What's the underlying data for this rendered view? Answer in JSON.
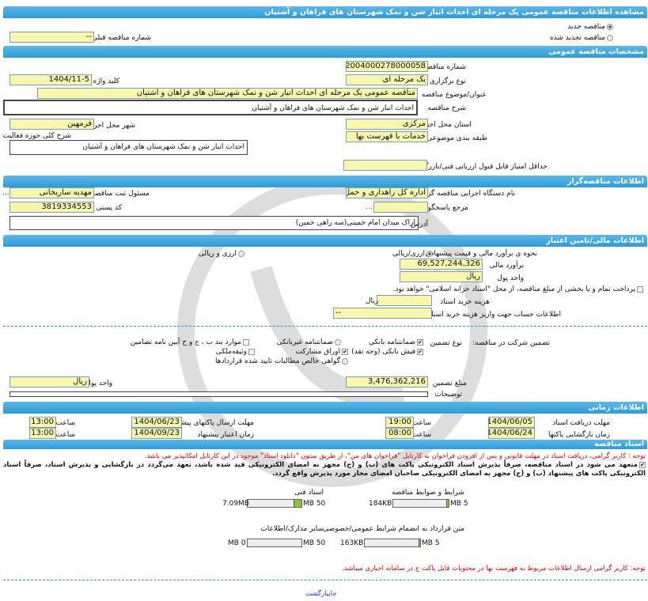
{
  "title": "مشاهده اطلاعات مناقصه عمومی یک مرحله ای احداث انبار شن و نمک شهرستان های فراهان و آشتیان",
  "tender_type": {
    "new": "مناقصه جدید",
    "renewed": "مناقصه تجدید شده",
    "selected": "new"
  },
  "previous_number": {
    "label": "شماره مناقصه قبلی",
    "value": "--"
  },
  "general": {
    "header": "مشخصات مناقصه عمومی",
    "number_label": "شماره مناقصه",
    "number": "2004000278000058",
    "holding_label": "نوع برگزاری",
    "holding": "یک مرحله ای",
    "keyword_label": "کلید واژه",
    "keyword": "1404/11-5",
    "subject_label": "عنوان/موضوع مناقصه",
    "subject": "مناقصه عمومی یک مرحله ای احداث انبار شن و نمک شهرستان های فراهان و آشتیان",
    "desc_label": "شرح مناقصه",
    "desc": "احداث انبار شن و نمک شهرستان های فراهان و آشتیان",
    "province_label": "استان محل اجرا",
    "province": "مرکزی",
    "city_label": "شهر محل اجرا",
    "city": "فرمهین",
    "activity_label": "شرح کلی حوزه فعالیت",
    "activity": "احداث انبار شن و نمک شهرستان های فراهان و آشتیان",
    "category_label": "طبقه بندی موضوعی",
    "category": "خدمات با فهرست بها",
    "min_score_label": "حداقل امتیاز قابل قبول ارزیابی فنی/بازرگانی",
    "min_score": ""
  },
  "organizer": {
    "header": "اطلاعات مناقصه‌گزار",
    "org_label": "نام دستگاه اجرایی مناقصه گزار",
    "org": "اداره کل راهداری و حمل و نقل",
    "responsible_label": "مسئول ثبت مناقصه",
    "responsible": "مهدیه ساریخانی",
    "more": "...",
    "reference_label": "مرجع پاسخگویی",
    "reference": "",
    "postal_label": "کد پستی",
    "postal": "3819334553",
    "address_label": "آدرس",
    "address": "اراک میدان امام خمینی(سه راهی خمین)"
  },
  "finance": {
    "header": "اطلاعات مالی/تامین اعتبار",
    "estimate_method_label": "نحوه ی برآورد مالی و قیمت پیشنهادی",
    "opt_rial": "ارزی/ریالی",
    "opt_both": "ارزی و ریالی",
    "estimate_label": "برآورد مالی",
    "estimate": "69,527,244,326",
    "currency_label": "واحد پول",
    "currency": "ریال",
    "treasury_text": "پرداخت تمام و یا بخشی از مبلغ مناقصه، از محل \"اسناد خزانه اسلامی\" خواهد بود.",
    "doc_cost_label": "هزینه خرید اسناد",
    "doc_cost": "",
    "doc_cost_unit": "ریال",
    "account_label": "اطلاعات حساب جهت واریز هزینه خرید اسناد",
    "account": "--"
  },
  "guarantee": {
    "label": "تضمین شرکت در مناقصه:",
    "type_label": "نوع تضمین",
    "items": [
      {
        "label": "ضمانتنامه بانکی",
        "checked": true
      },
      {
        "label": "ضمانتنامه غیربانکی",
        "checked": false
      },
      {
        "label": "موارد بند ب ، ج و ح آیین نامه تضامین",
        "checked": false
      },
      {
        "label": "فیش بانکی (وجه نقد)",
        "checked": true
      },
      {
        "label": "اوراق مشارکت",
        "checked": true
      },
      {
        "label": "وثیقه‌ملکی",
        "checked": false
      },
      {
        "label": "گواهی خالص مطالبات تایید شده قراردادها",
        "checked": false
      }
    ],
    "amount_label": "مبلغ تضمین",
    "amount": "3,476,362,216",
    "currency_label": "واحد پول",
    "currency": "ریال",
    "notes_label": "توضیحات",
    "notes": ""
  },
  "timing": {
    "header": "اطلاعات زمانی",
    "time_label": "ساعت",
    "doc_deadline_label": "مهلت دریافت اسناد",
    "doc_deadline": "1404/06/05",
    "doc_deadline_time": "19:00",
    "submit_label": "مهلت ارسال پاکتهای پیشنهاد",
    "submit": "1404/06/23",
    "submit_time": "13:00",
    "open_label": "زمان بازگشایی پاکتها",
    "open": "1404/06/24",
    "open_time": "08:00",
    "validity_label": "زمان اعتبار پیشنهاد",
    "validity": "1404/09/23",
    "validity_time": "13:00"
  },
  "docs": {
    "header": "اسناد مناقصه",
    "notice1": "توجه : کاربر گرامی، دریافت اسناد در مهلت قانونی و پس از افزودن فراخوان به کارتابل \"فراخوان های من\"، از طریق ستون \"دانلود اسناد\" موجود در این کارتابل امکانپذیر می باشد.",
    "commit": "متعهد می شود در اسناد مناقصه، صرفاً پذیرش اسناد الکترونیکی پاکت های (ب) و (ج) مجهز به امضای الکترونیکی قید شده باشد، تعهد می‌گردد در بازگشایی و پذیرش اسناد، صرفاً اسناد الکترونیکی پاکت های پیشنهاد (ب) و (ج) مجهز به امضای الکترونیکی صاحبان امضای مجاز مورد پذیرش واقع گردد.",
    "files": [
      {
        "label": "شرایط و ضوابط مناقصه",
        "size": "184KB",
        "max": "5 MB",
        "fill": 0.036
      },
      {
        "label": "اسناد فنی",
        "size": "7.09MB",
        "max": "50 MB",
        "fill": 0.142
      },
      {
        "label": "متن قرارداد به انضمام شرایط عمومی/خصوصی",
        "size": "163KB",
        "max": "5 MB",
        "fill": 0.032
      },
      {
        "label": "سایر مدارک/اطلاعات",
        "size": "0 MB",
        "max": "50 MB",
        "fill": 0
      }
    ],
    "notice2": "توجه: کاربر گرامی ارسال اطلاعات مربوط به فهرست بها در محتویات فایل پاکت ج در سامانه اجباری میباشد."
  },
  "footer": {
    "print": "چاپ",
    "back": "بازگشت"
  },
  "colors": {
    "header": "#2f9bd6",
    "field": "#f9f6ae",
    "notice": "#d00000",
    "progress": "#8cc63f"
  }
}
